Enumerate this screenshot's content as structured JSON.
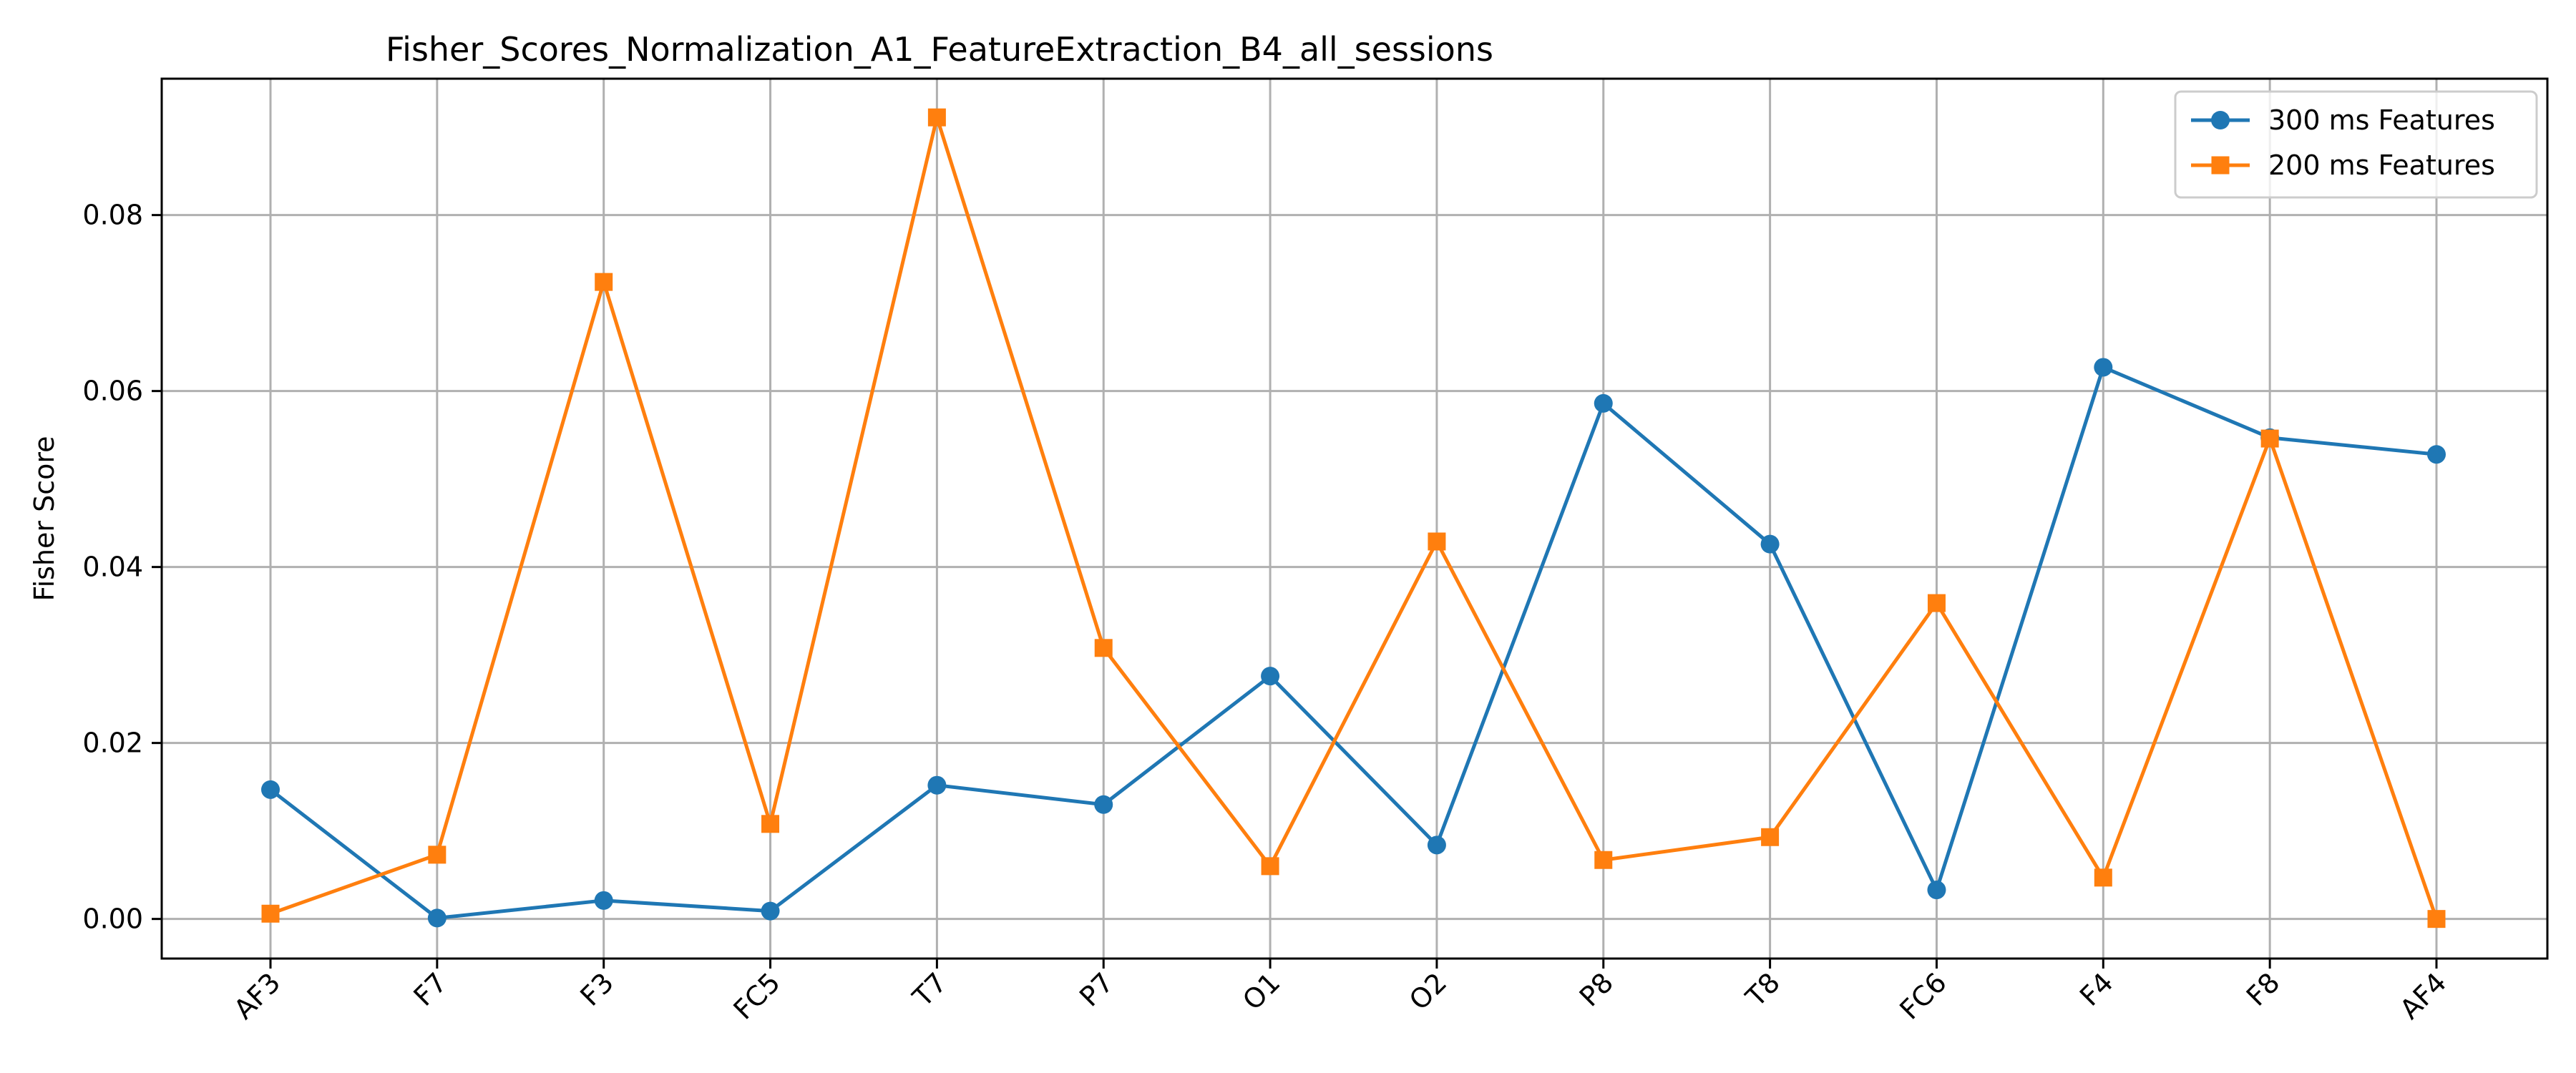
{
  "chart_data": {
    "type": "line",
    "title": "Fisher_Scores_Normalization_A1_FeatureExtraction_B4_all_sessions",
    "xlabel": "",
    "ylabel": "Fisher Score",
    "categories": [
      "AF3",
      "F7",
      "F3",
      "FC5",
      "T7",
      "P7",
      "O1",
      "O2",
      "P8",
      "T8",
      "FC6",
      "F4",
      "F8",
      "AF4"
    ],
    "yticks": [
      "0.00",
      "0.02",
      "0.04",
      "0.06",
      "0.08"
    ],
    "ylim": [
      -0.0045,
      0.0955
    ],
    "grid": true,
    "legend_position": "top-right",
    "series": [
      {
        "name": "300 ms Features",
        "marker": "circle",
        "color": "#1f77b4",
        "values": [
          0.0147,
          0.0001,
          0.0021,
          0.0009,
          0.0152,
          0.013,
          0.0276,
          0.0084,
          0.0586,
          0.0426,
          0.0033,
          0.0627,
          0.0547,
          0.0528
        ]
      },
      {
        "name": "200 ms Features",
        "marker": "square",
        "color": "#ff7f0e",
        "values": [
          0.0006,
          0.0073,
          0.0724,
          0.0108,
          0.0911,
          0.0308,
          0.006,
          0.0429,
          0.0067,
          0.0093,
          0.0359,
          0.0047,
          0.0546,
          0.0
        ]
      }
    ]
  }
}
